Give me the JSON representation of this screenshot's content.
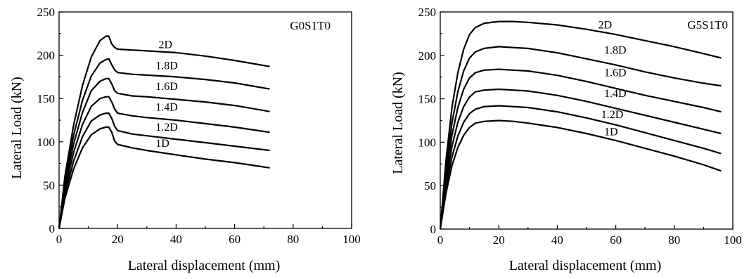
{
  "chart_data": [
    {
      "type": "line",
      "panel_label": "G0S1T0",
      "xlabel": "Lateral displacement (mm)",
      "ylabel": "Lateral Load (kN)",
      "xlim": [
        0,
        100
      ],
      "ylim": [
        0,
        250
      ],
      "xticks": [
        0,
        20,
        40,
        60,
        80,
        100
      ],
      "yticks": [
        0,
        50,
        100,
        150,
        200,
        250
      ],
      "grid": false,
      "legend": "none",
      "series": [
        {
          "name": "2D",
          "label_at": [
            34,
            208
          ],
          "x": [
            0,
            2,
            5,
            8,
            11,
            14,
            16,
            17,
            18,
            19,
            20,
            25,
            30,
            40,
            50,
            60,
            72
          ],
          "y": [
            0,
            60,
            120,
            165,
            198,
            217,
            222,
            222,
            213,
            209,
            207,
            206,
            205,
            203,
            199,
            194,
            187
          ]
        },
        {
          "name": "1.8D",
          "label_at": [
            33,
            184
          ],
          "x": [
            0,
            2,
            5,
            8,
            11,
            14,
            16,
            17,
            18,
            19,
            20,
            25,
            30,
            40,
            50,
            60,
            72
          ],
          "y": [
            0,
            55,
            108,
            148,
            176,
            191,
            195,
            196,
            189,
            183,
            180,
            178,
            177,
            175,
            172,
            168,
            161
          ]
        },
        {
          "name": "1.6D",
          "label_at": [
            33,
            160
          ],
          "x": [
            0,
            2,
            5,
            8,
            11,
            14,
            16,
            17,
            18,
            19,
            20,
            25,
            30,
            40,
            50,
            60,
            72
          ],
          "y": [
            0,
            50,
            98,
            134,
            159,
            170,
            173,
            173,
            167,
            159,
            156,
            153,
            152,
            149,
            146,
            142,
            135
          ]
        },
        {
          "name": "1.4D",
          "label_at": [
            33,
            136
          ],
          "x": [
            0,
            2,
            5,
            8,
            11,
            14,
            16,
            17,
            18,
            19,
            20,
            25,
            30,
            40,
            50,
            60,
            72
          ],
          "y": [
            0,
            45,
            88,
            120,
            141,
            150,
            152,
            152,
            146,
            138,
            133,
            130,
            128,
            125,
            121,
            117,
            111
          ]
        },
        {
          "name": "1.2D",
          "label_at": [
            33,
            113
          ],
          "x": [
            0,
            2,
            5,
            8,
            11,
            14,
            16,
            17,
            18,
            19,
            20,
            25,
            30,
            40,
            50,
            60,
            72
          ],
          "y": [
            0,
            40,
            78,
            106,
            124,
            131,
            133,
            133,
            127,
            118,
            113,
            109,
            107,
            103,
            99,
            95,
            90
          ]
        },
        {
          "name": "1D",
          "label_at": [
            33,
            94
          ],
          "x": [
            0,
            2,
            5,
            8,
            11,
            14,
            16,
            17,
            18,
            19,
            20,
            25,
            30,
            40,
            50,
            60,
            72
          ],
          "y": [
            0,
            35,
            69,
            93,
            108,
            115,
            117,
            117,
            111,
            101,
            97,
            93,
            90,
            85,
            80,
            76,
            70
          ]
        }
      ]
    },
    {
      "type": "line",
      "panel_label": "G5S1T0",
      "xlabel": "Lateral displacement (mm)",
      "ylabel": "Lateral Load (kN)",
      "xlim": [
        0,
        100
      ],
      "ylim": [
        0,
        250
      ],
      "xticks": [
        0,
        20,
        40,
        60,
        80,
        100
      ],
      "yticks": [
        0,
        50,
        100,
        150,
        200,
        250
      ],
      "grid": false,
      "legend": "none",
      "series": [
        {
          "name": "2D",
          "label_at": [
            54,
            231
          ],
          "x": [
            0,
            2,
            4,
            6,
            8,
            10,
            12,
            15,
            20,
            25,
            30,
            40,
            50,
            60,
            70,
            80,
            90,
            96
          ],
          "y": [
            0,
            80,
            140,
            180,
            207,
            224,
            232,
            237,
            239,
            239,
            238,
            235,
            230,
            224,
            217,
            210,
            202,
            197
          ]
        },
        {
          "name": "1.8D",
          "label_at": [
            56,
            202
          ],
          "x": [
            0,
            2,
            4,
            6,
            8,
            10,
            12,
            15,
            20,
            25,
            30,
            40,
            50,
            60,
            70,
            80,
            90,
            96
          ],
          "y": [
            0,
            70,
            122,
            158,
            182,
            197,
            204,
            208,
            210,
            209,
            208,
            203,
            196,
            189,
            181,
            174,
            168,
            165
          ]
        },
        {
          "name": "1.6D",
          "label_at": [
            56,
            176
          ],
          "x": [
            0,
            2,
            4,
            6,
            8,
            10,
            12,
            15,
            20,
            25,
            30,
            40,
            50,
            60,
            70,
            80,
            90,
            96
          ],
          "y": [
            0,
            62,
            108,
            140,
            161,
            174,
            180,
            183,
            184,
            183,
            182,
            177,
            170,
            162,
            154,
            147,
            140,
            135
          ]
        },
        {
          "name": "1.4D",
          "label_at": [
            56,
            152
          ],
          "x": [
            0,
            2,
            4,
            6,
            8,
            10,
            12,
            15,
            20,
            25,
            30,
            40,
            50,
            60,
            70,
            80,
            90,
            96
          ],
          "y": [
            0,
            55,
            95,
            123,
            141,
            152,
            158,
            160,
            161,
            160,
            159,
            154,
            147,
            139,
            131,
            123,
            115,
            110
          ]
        },
        {
          "name": "1.2D",
          "label_at": [
            55,
            128
          ],
          "x": [
            0,
            2,
            4,
            6,
            8,
            10,
            12,
            15,
            20,
            25,
            30,
            40,
            50,
            60,
            70,
            80,
            90,
            96
          ],
          "y": [
            0,
            48,
            83,
            107,
            123,
            133,
            138,
            141,
            142,
            141,
            140,
            135,
            128,
            120,
            111,
            102,
            93,
            87
          ]
        },
        {
          "name": "1D",
          "label_at": [
            56,
            108
          ],
          "x": [
            0,
            2,
            4,
            6,
            8,
            10,
            12,
            15,
            20,
            25,
            30,
            40,
            50,
            60,
            70,
            80,
            90,
            96
          ],
          "y": [
            0,
            42,
            73,
            94,
            108,
            117,
            122,
            124,
            125,
            124,
            122,
            117,
            110,
            102,
            93,
            84,
            74,
            67
          ]
        }
      ]
    }
  ]
}
